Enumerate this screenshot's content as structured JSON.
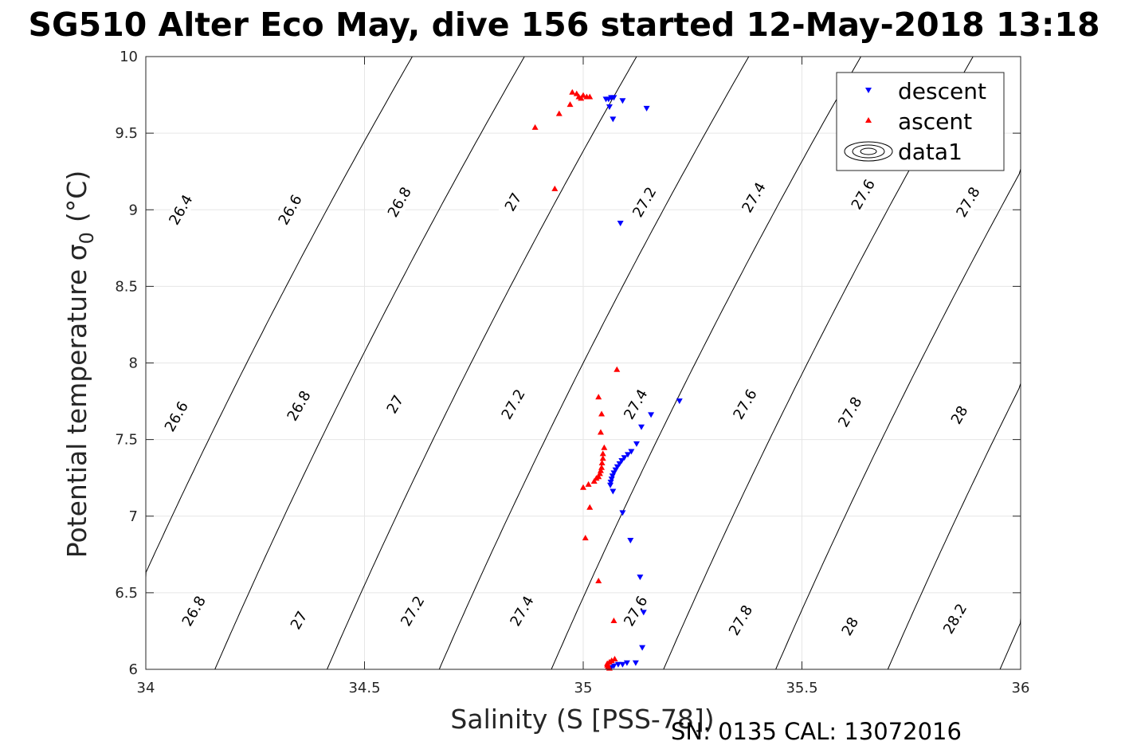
{
  "chart_data": {
    "type": "scatter",
    "title": "SG510 Alter Eco May, dive 156 started 12-May-2018 13:18",
    "xlabel": "Salinity (S [PSS-78])",
    "ylabel_main": "Potential temperature σ",
    "ylabel_sub": "0",
    "ylabel_unit": "(°C)",
    "footer": "SN: 0135  CAL: 13072016",
    "xlim": [
      34,
      36
    ],
    "ylim": [
      6,
      10
    ],
    "xticks": [
      34,
      34.5,
      35,
      35.5,
      36
    ],
    "yticks": [
      6,
      6.5,
      7,
      7.5,
      8,
      8.5,
      9,
      9.5,
      10
    ],
    "xtick_labels": [
      "34",
      "34.5",
      "35",
      "35.5",
      "36"
    ],
    "ytick_labels": [
      "6",
      "6.5",
      "7",
      "7.5",
      "8",
      "8.5",
      "9",
      "9.5",
      "10"
    ],
    "grid": true,
    "legend_position": "top-right",
    "legend": [
      "descent",
      "ascent",
      "data1"
    ],
    "contours": {
      "levels": [
        26.4,
        26.6,
        26.8,
        27.0,
        27.2,
        27.4,
        27.6,
        27.8,
        28.0,
        28.2
      ],
      "labels": [
        {
          "text": "26.4",
          "s": 34.08,
          "t": 9.0
        },
        {
          "text": "26.6",
          "s": 34.33,
          "t": 9.0
        },
        {
          "text": "26.8",
          "s": 34.58,
          "t": 9.05
        },
        {
          "text": "27",
          "s": 34.84,
          "t": 9.05
        },
        {
          "text": "27.2",
          "s": 35.14,
          "t": 9.05
        },
        {
          "text": "27.4",
          "s": 35.39,
          "t": 9.08
        },
        {
          "text": "27.6",
          "s": 35.64,
          "t": 9.1
        },
        {
          "text": "27.8",
          "s": 35.88,
          "t": 9.05
        },
        {
          "text": "26.6",
          "s": 34.07,
          "t": 7.65
        },
        {
          "text": "26.8",
          "s": 34.35,
          "t": 7.72
        },
        {
          "text": "27",
          "s": 34.57,
          "t": 7.73
        },
        {
          "text": "27.2",
          "s": 34.84,
          "t": 7.73
        },
        {
          "text": "27.4",
          "s": 35.12,
          "t": 7.73
        },
        {
          "text": "27.6",
          "s": 35.37,
          "t": 7.73
        },
        {
          "text": "27.8",
          "s": 35.61,
          "t": 7.68
        },
        {
          "text": "28",
          "s": 35.86,
          "t": 7.66
        },
        {
          "text": "26.8",
          "s": 34.11,
          "t": 6.38
        },
        {
          "text": "27",
          "s": 34.35,
          "t": 6.32
        },
        {
          "text": "27.2",
          "s": 34.61,
          "t": 6.38
        },
        {
          "text": "27.4",
          "s": 34.86,
          "t": 6.38
        },
        {
          "text": "27.6",
          "s": 35.12,
          "t": 6.38
        },
        {
          "text": "27.8",
          "s": 35.36,
          "t": 6.32
        },
        {
          "text": "28",
          "s": 35.61,
          "t": 6.28
        },
        {
          "text": "28.2",
          "s": 35.85,
          "t": 6.33
        }
      ]
    },
    "series": [
      {
        "name": "descent",
        "marker": "triangle-down",
        "color": "#0000ff",
        "points": [
          [
            35.052,
            9.72
          ],
          [
            35.058,
            9.72
          ],
          [
            35.064,
            9.73
          ],
          [
            35.07,
            9.73
          ],
          [
            35.09,
            9.71
          ],
          [
            35.145,
            9.66
          ],
          [
            35.06,
            9.67
          ],
          [
            35.068,
            9.59
          ],
          [
            35.085,
            8.91
          ],
          [
            35.22,
            7.75
          ],
          [
            35.155,
            7.66
          ],
          [
            35.133,
            7.58
          ],
          [
            35.122,
            7.47
          ],
          [
            35.11,
            7.42
          ],
          [
            35.102,
            7.4
          ],
          [
            35.094,
            7.38
          ],
          [
            35.088,
            7.36
          ],
          [
            35.083,
            7.34
          ],
          [
            35.078,
            7.32
          ],
          [
            35.074,
            7.3
          ],
          [
            35.07,
            7.28
          ],
          [
            35.067,
            7.26
          ],
          [
            35.065,
            7.24
          ],
          [
            35.063,
            7.22
          ],
          [
            35.062,
            7.2
          ],
          [
            35.068,
            7.16
          ],
          [
            35.09,
            7.02
          ],
          [
            35.108,
            6.84
          ],
          [
            35.13,
            6.6
          ],
          [
            35.138,
            6.37
          ],
          [
            35.135,
            6.14
          ],
          [
            35.12,
            6.04
          ],
          [
            35.1,
            6.04
          ],
          [
            35.09,
            6.03
          ],
          [
            35.08,
            6.03
          ],
          [
            35.07,
            6.02
          ],
          [
            35.064,
            6.01
          ]
        ]
      },
      {
        "name": "ascent",
        "marker": "triangle-up",
        "color": "#ff0000",
        "points": [
          [
            34.975,
            9.77
          ],
          [
            34.985,
            9.76
          ],
          [
            34.99,
            9.74
          ],
          [
            34.995,
            9.73
          ],
          [
            35.0,
            9.75
          ],
          [
            35.008,
            9.74
          ],
          [
            35.015,
            9.74
          ],
          [
            34.97,
            9.69
          ],
          [
            34.945,
            9.63
          ],
          [
            34.89,
            9.54
          ],
          [
            34.935,
            9.14
          ],
          [
            35.077,
            7.96
          ],
          [
            35.035,
            7.78
          ],
          [
            35.042,
            7.67
          ],
          [
            35.04,
            7.55
          ],
          [
            35.048,
            7.45
          ],
          [
            35.045,
            7.41
          ],
          [
            35.045,
            7.38
          ],
          [
            35.043,
            7.35
          ],
          [
            35.042,
            7.32
          ],
          [
            35.04,
            7.3
          ],
          [
            35.038,
            7.28
          ],
          [
            35.035,
            7.26
          ],
          [
            35.03,
            7.25
          ],
          [
            35.025,
            7.23
          ],
          [
            35.012,
            7.21
          ],
          [
            35.0,
            7.19
          ],
          [
            35.015,
            7.06
          ],
          [
            35.005,
            6.86
          ],
          [
            35.035,
            6.58
          ],
          [
            35.07,
            6.32
          ],
          [
            35.072,
            6.07
          ],
          [
            35.065,
            6.06
          ],
          [
            35.06,
            6.05
          ],
          [
            35.055,
            6.04
          ],
          [
            35.055,
            6.03
          ],
          [
            35.057,
            6.02
          ],
          [
            35.06,
            6.01
          ]
        ]
      }
    ]
  }
}
